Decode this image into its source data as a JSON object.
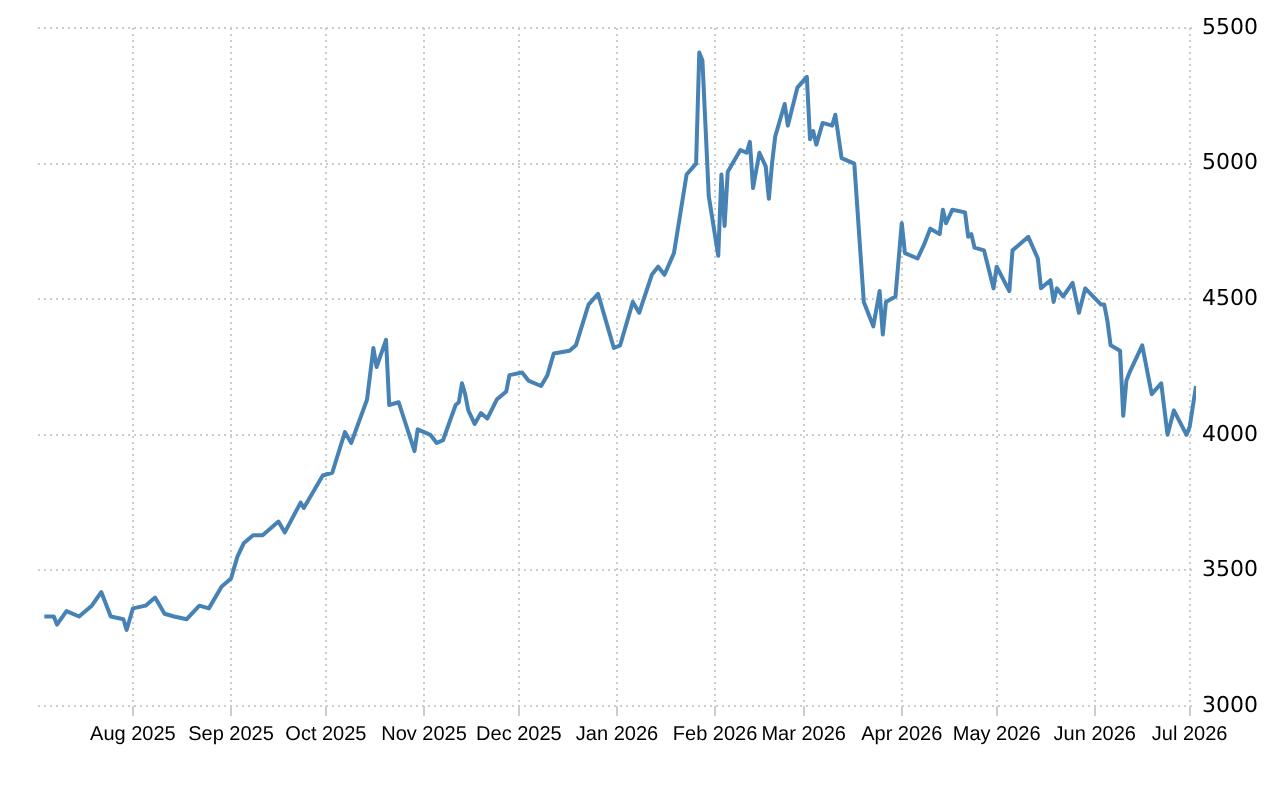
{
  "chart_data": {
    "type": "line",
    "x": [
      "2025-07-04",
      "2025-07-07",
      "2025-07-08",
      "2025-07-11",
      "2025-07-15",
      "2025-07-16",
      "2025-07-19",
      "2025-07-22",
      "2025-07-25",
      "2025-07-29",
      "2025-07-30",
      "2025-08-01",
      "2025-08-05",
      "2025-08-08",
      "2025-08-11",
      "2025-08-14",
      "2025-08-18",
      "2025-08-22",
      "2025-08-25",
      "2025-08-29",
      "2025-09-01",
      "2025-09-03",
      "2025-09-05",
      "2025-09-08",
      "2025-09-11",
      "2025-09-16",
      "2025-09-18",
      "2025-09-23",
      "2025-09-24",
      "2025-09-30",
      "2025-10-03",
      "2025-10-07",
      "2025-10-09",
      "2025-10-14",
      "2025-10-16",
      "2025-10-17",
      "2025-10-20",
      "2025-10-21",
      "2025-10-24",
      "2025-10-29",
      "2025-10-30",
      "2025-11-03",
      "2025-11-05",
      "2025-11-07",
      "2025-11-11",
      "2025-11-12",
      "2025-11-13",
      "2025-11-14",
      "2025-11-15",
      "2025-11-17",
      "2025-11-19",
      "2025-11-21",
      "2025-11-24",
      "2025-11-27",
      "2025-11-28",
      "2025-12-02",
      "2025-12-04",
      "2025-12-08",
      "2025-12-10",
      "2025-12-12",
      "2025-12-17",
      "2025-12-19",
      "2025-12-23",
      "2025-12-26",
      "2025-12-29",
      "2025-12-31",
      "2026-01-02",
      "2026-01-06",
      "2026-01-08",
      "2026-01-12",
      "2026-01-14",
      "2026-01-16",
      "2026-01-19",
      "2026-01-23",
      "2026-01-26",
      "2026-01-27",
      "2026-01-28",
      "2026-01-30",
      "2026-02-02",
      "2026-02-03",
      "2026-02-04",
      "2026-02-05",
      "2026-02-09",
      "2026-02-11",
      "2026-02-12",
      "2026-02-13",
      "2026-02-15",
      "2026-02-17",
      "2026-02-18",
      "2026-02-19",
      "2026-02-20",
      "2026-02-23",
      "2026-02-24",
      "2026-02-27",
      "2026-03-02",
      "2026-03-03",
      "2026-03-04",
      "2026-03-05",
      "2026-03-07",
      "2026-03-10",
      "2026-03-11",
      "2026-03-13",
      "2026-03-17",
      "2026-03-20",
      "2026-03-23",
      "2026-03-25",
      "2026-03-26",
      "2026-03-27",
      "2026-03-30",
      "2026-04-01",
      "2026-04-02",
      "2026-04-06",
      "2026-04-08",
      "2026-04-10",
      "2026-04-13",
      "2026-04-14",
      "2026-04-15",
      "2026-04-17",
      "2026-04-21",
      "2026-04-22",
      "2026-04-23",
      "2026-04-24",
      "2026-04-27",
      "2026-04-30",
      "2026-05-01",
      "2026-05-05",
      "2026-05-06",
      "2026-05-08",
      "2026-05-11",
      "2026-05-14",
      "2026-05-15",
      "2026-05-18",
      "2026-05-19",
      "2026-05-20",
      "2026-05-22",
      "2026-05-25",
      "2026-05-27",
      "2026-05-29",
      "2026-06-03",
      "2026-06-04",
      "2026-06-05",
      "2026-06-06",
      "2026-06-09",
      "2026-06-10",
      "2026-06-11",
      "2026-06-12",
      "2026-06-16",
      "2026-06-19",
      "2026-06-22",
      "2026-06-24",
      "2026-06-26",
      "2026-06-30",
      "2026-07-01",
      "2026-07-03"
    ],
    "series": [
      {
        "color": "#4682b4",
        "values": [
          3330,
          3330,
          3300,
          3350,
          3330,
          3340,
          3370,
          3420,
          3330,
          3320,
          3280,
          3360,
          3370,
          3400,
          3340,
          3330,
          3320,
          3370,
          3360,
          3440,
          3470,
          3550,
          3600,
          3630,
          3630,
          3680,
          3640,
          3750,
          3730,
          3850,
          3860,
          4010,
          3970,
          4130,
          4320,
          4250,
          4350,
          4110,
          4120,
          3940,
          4020,
          4000,
          3970,
          3980,
          4110,
          4120,
          4190,
          4150,
          4090,
          4040,
          4080,
          4060,
          4130,
          4160,
          4220,
          4230,
          4200,
          4180,
          4220,
          4300,
          4310,
          4330,
          4480,
          4520,
          4400,
          4320,
          4330,
          4490,
          4450,
          4590,
          4620,
          4590,
          4670,
          4960,
          5000,
          5410,
          5380,
          4880,
          4660,
          4960,
          4770,
          4970,
          5050,
          5040,
          5080,
          4910,
          5040,
          4990,
          4870,
          5000,
          5100,
          5220,
          5140,
          5280,
          5320,
          5090,
          5120,
          5070,
          5150,
          5140,
          5180,
          5020,
          5000,
          4490,
          4400,
          4530,
          4370,
          4490,
          4510,
          4780,
          4670,
          4650,
          4700,
          4760,
          4740,
          4830,
          4780,
          4830,
          4820,
          4730,
          4740,
          4690,
          4680,
          4540,
          4620,
          4530,
          4680,
          4700,
          4730,
          4650,
          4540,
          4570,
          4490,
          4540,
          4510,
          4560,
          4450,
          4540,
          4480,
          4480,
          4420,
          4330,
          4310,
          4070,
          4200,
          4230,
          4330,
          4150,
          4190,
          4000,
          4090,
          4000,
          4030,
          4180
        ]
      }
    ],
    "xlim": [
      "2025-07-02",
      "2026-07-03"
    ],
    "xticks": [
      {
        "value": "2025-08-01",
        "label": "Aug 2025"
      },
      {
        "value": "2025-09-01",
        "label": "Sep 2025"
      },
      {
        "value": "2025-10-01",
        "label": "Oct 2025"
      },
      {
        "value": "2025-11-01",
        "label": "Nov 2025"
      },
      {
        "value": "2025-12-01",
        "label": "Dec 2025"
      },
      {
        "value": "2026-01-01",
        "label": "Jan 2026"
      },
      {
        "value": "2026-02-01",
        "label": "Feb 2026"
      },
      {
        "value": "2026-03-01",
        "label": "Mar 2026"
      },
      {
        "value": "2026-04-01",
        "label": "Apr 2026"
      },
      {
        "value": "2026-05-01",
        "label": "May 2026"
      },
      {
        "value": "2026-06-01",
        "label": "Jun 2026"
      },
      {
        "value": "2026-07-01",
        "label": "Jul 2026"
      }
    ],
    "ylim": [
      3000,
      5500
    ],
    "yticks": [
      3000,
      3500,
      4000,
      4500,
      5000,
      5500
    ],
    "grid": true,
    "legend": false,
    "marker": "none",
    "line_style": "solid"
  }
}
